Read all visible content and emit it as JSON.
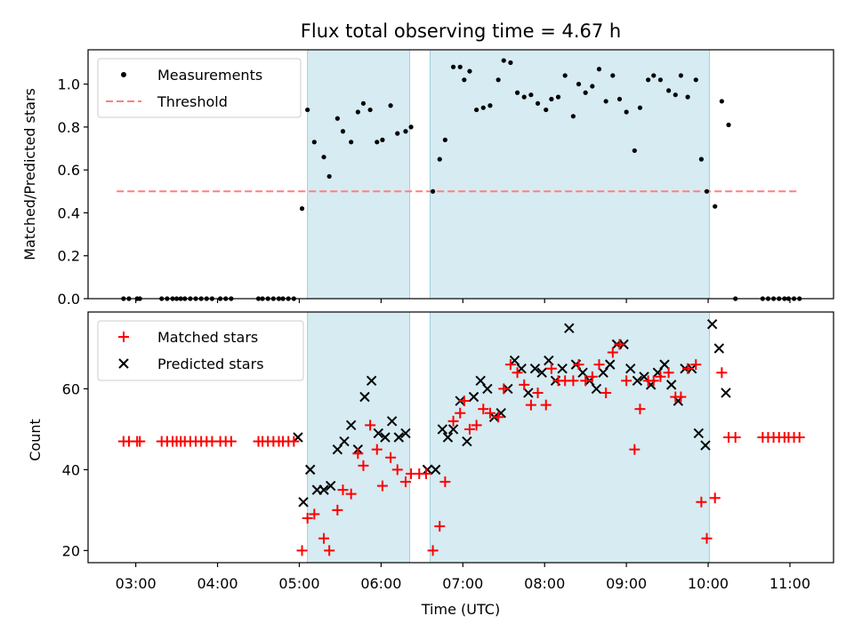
{
  "title": "Flux total observing time = 4.67 h",
  "chart_data": [
    {
      "type": "scatter",
      "ylabel": "Matched/Predicted stars",
      "ylim": [
        0,
        1.16
      ],
      "xlim": [
        "02:25",
        "11:32"
      ],
      "yticks": [
        "0.0",
        "0.2",
        "0.4",
        "0.6",
        "0.8",
        "1.0"
      ],
      "yticks_values": [
        0,
        0.2,
        0.4,
        0.6,
        0.8,
        1.0
      ],
      "legend": {
        "placement": "top-left",
        "entries": [
          "Measurements",
          "Threshold"
        ]
      },
      "shaded_intervals": [
        [
          "05:06",
          "06:21"
        ],
        [
          "06:36",
          "10:01"
        ]
      ],
      "threshold": {
        "value": 0.5,
        "x_range": [
          "02:46",
          "11:05"
        ]
      },
      "series": [
        {
          "name": "Measurements",
          "points": [
            [
              "02:51",
              0
            ],
            [
              "02:55",
              0
            ],
            [
              "03:01",
              0
            ],
            [
              "03:03",
              0
            ],
            [
              "03:19",
              0
            ],
            [
              "03:23",
              0
            ],
            [
              "03:27",
              0
            ],
            [
              "03:30",
              0
            ],
            [
              "03:33",
              0
            ],
            [
              "03:36",
              0
            ],
            [
              "03:40",
              0
            ],
            [
              "03:44",
              0
            ],
            [
              "03:48",
              0
            ],
            [
              "03:52",
              0
            ],
            [
              "03:56",
              0
            ],
            [
              "04:02",
              0
            ],
            [
              "04:06",
              0
            ],
            [
              "04:10",
              0
            ],
            [
              "04:30",
              0
            ],
            [
              "04:33",
              0
            ],
            [
              "04:37",
              0
            ],
            [
              "04:41",
              0
            ],
            [
              "04:45",
              0
            ],
            [
              "04:48",
              0
            ],
            [
              "04:52",
              0
            ],
            [
              "04:56",
              0
            ],
            [
              "05:02",
              0.42
            ],
            [
              "05:06",
              0.88
            ],
            [
              "05:11",
              0.73
            ],
            [
              "05:18",
              0.66
            ],
            [
              "05:22",
              0.57
            ],
            [
              "05:28",
              0.84
            ],
            [
              "05:32",
              0.78
            ],
            [
              "05:38",
              0.73
            ],
            [
              "05:43",
              0.87
            ],
            [
              "05:47",
              0.91
            ],
            [
              "05:52",
              0.88
            ],
            [
              "05:57",
              0.73
            ],
            [
              "06:01",
              0.74
            ],
            [
              "06:07",
              0.9
            ],
            [
              "06:12",
              0.77
            ],
            [
              "06:18",
              0.78
            ],
            [
              "06:22",
              0.8
            ],
            [
              "06:38",
              0.5
            ],
            [
              "06:43",
              0.65
            ],
            [
              "06:47",
              0.74
            ],
            [
              "06:53",
              1.08
            ],
            [
              "06:58",
              1.08
            ],
            [
              "07:01",
              1.02
            ],
            [
              "07:05",
              1.06
            ],
            [
              "07:10",
              0.88
            ],
            [
              "07:15",
              0.89
            ],
            [
              "07:20",
              0.9
            ],
            [
              "07:26",
              1.02
            ],
            [
              "07:30",
              1.11
            ],
            [
              "07:35",
              1.1
            ],
            [
              "07:40",
              0.96
            ],
            [
              "07:45",
              0.94
            ],
            [
              "07:50",
              0.95
            ],
            [
              "07:55",
              0.91
            ],
            [
              "08:01",
              0.88
            ],
            [
              "08:05",
              0.93
            ],
            [
              "08:10",
              0.94
            ],
            [
              "08:15",
              1.04
            ],
            [
              "08:21",
              0.85
            ],
            [
              "08:25",
              1.0
            ],
            [
              "08:30",
              0.96
            ],
            [
              "08:35",
              0.99
            ],
            [
              "08:40",
              1.07
            ],
            [
              "08:45",
              0.92
            ],
            [
              "08:50",
              1.04
            ],
            [
              "08:55",
              0.93
            ],
            [
              "09:00",
              0.87
            ],
            [
              "09:06",
              0.69
            ],
            [
              "09:10",
              0.89
            ],
            [
              "09:16",
              1.02
            ],
            [
              "09:20",
              1.04
            ],
            [
              "09:25",
              1.02
            ],
            [
              "09:31",
              0.97
            ],
            [
              "09:36",
              0.95
            ],
            [
              "09:40",
              1.04
            ],
            [
              "09:45",
              0.94
            ],
            [
              "09:51",
              1.02
            ],
            [
              "09:55",
              0.65
            ],
            [
              "09:59",
              0.5
            ],
            [
              "10:05",
              0.43
            ],
            [
              "10:10",
              0.92
            ],
            [
              "10:15",
              0.81
            ],
            [
              "10:20",
              0
            ],
            [
              "10:40",
              0
            ],
            [
              "10:44",
              0
            ],
            [
              "10:48",
              0
            ],
            [
              "10:52",
              0
            ],
            [
              "10:56",
              0
            ],
            [
              "10:59",
              0
            ],
            [
              "11:03",
              0
            ],
            [
              "11:07",
              0
            ]
          ]
        },
        {
          "name": "Threshold",
          "y": 0.5
        }
      ]
    },
    {
      "type": "scatter",
      "xlabel": "Time (UTC)",
      "ylabel": "Count",
      "ylim": [
        17,
        79
      ],
      "xlim": [
        "02:25",
        "11:32"
      ],
      "xticks": [
        "03:00",
        "04:00",
        "05:00",
        "06:00",
        "07:00",
        "08:00",
        "09:00",
        "10:00",
        "11:00"
      ],
      "yticks": [
        "20",
        "40",
        "60"
      ],
      "yticks_values": [
        20,
        40,
        60
      ],
      "legend": {
        "placement": "top-left",
        "entries": [
          "Matched stars",
          "Predicted stars"
        ]
      },
      "shaded_intervals": [
        [
          "05:06",
          "06:21"
        ],
        [
          "06:36",
          "10:01"
        ]
      ],
      "series": [
        {
          "name": "Matched stars",
          "points": [
            [
              "02:51",
              47
            ],
            [
              "02:55",
              47
            ],
            [
              "03:01",
              47
            ],
            [
              "03:03",
              47
            ],
            [
              "03:19",
              47
            ],
            [
              "03:23",
              47
            ],
            [
              "03:27",
              47
            ],
            [
              "03:30",
              47
            ],
            [
              "03:33",
              47
            ],
            [
              "03:36",
              47
            ],
            [
              "03:40",
              47
            ],
            [
              "03:44",
              47
            ],
            [
              "03:48",
              47
            ],
            [
              "03:52",
              47
            ],
            [
              "03:56",
              47
            ],
            [
              "04:02",
              47
            ],
            [
              "04:06",
              47
            ],
            [
              "04:10",
              47
            ],
            [
              "04:30",
              47
            ],
            [
              "04:33",
              47
            ],
            [
              "04:37",
              47
            ],
            [
              "04:41",
              47
            ],
            [
              "04:45",
              47
            ],
            [
              "04:48",
              47
            ],
            [
              "04:52",
              47
            ],
            [
              "04:56",
              47
            ],
            [
              "05:02",
              20
            ],
            [
              "05:06",
              28
            ],
            [
              "05:11",
              29
            ],
            [
              "05:18",
              23
            ],
            [
              "05:22",
              20
            ],
            [
              "05:28",
              30
            ],
            [
              "05:32",
              35
            ],
            [
              "05:38",
              34
            ],
            [
              "05:43",
              44
            ],
            [
              "05:47",
              41
            ],
            [
              "05:52",
              51
            ],
            [
              "05:57",
              45
            ],
            [
              "06:01",
              36
            ],
            [
              "06:07",
              43
            ],
            [
              "06:12",
              40
            ],
            [
              "06:18",
              37
            ],
            [
              "06:22",
              39
            ],
            [
              "06:28",
              39
            ],
            [
              "06:33",
              39
            ],
            [
              "06:38",
              20
            ],
            [
              "06:43",
              26
            ],
            [
              "06:47",
              37
            ],
            [
              "06:53",
              52
            ],
            [
              "06:58",
              54
            ],
            [
              "07:01",
              57
            ],
            [
              "07:05",
              50
            ],
            [
              "07:10",
              51
            ],
            [
              "07:15",
              55
            ],
            [
              "07:20",
              54
            ],
            [
              "07:26",
              53
            ],
            [
              "07:30",
              60
            ],
            [
              "07:35",
              66
            ],
            [
              "07:40",
              64
            ],
            [
              "07:45",
              61
            ],
            [
              "07:50",
              56
            ],
            [
              "07:55",
              59
            ],
            [
              "08:01",
              56
            ],
            [
              "08:05",
              65
            ],
            [
              "08:10",
              62
            ],
            [
              "08:15",
              62
            ],
            [
              "08:21",
              62
            ],
            [
              "08:25",
              66
            ],
            [
              "08:30",
              62
            ],
            [
              "08:35",
              63
            ],
            [
              "08:40",
              66
            ],
            [
              "08:45",
              59
            ],
            [
              "08:50",
              69
            ],
            [
              "08:55",
              71
            ],
            [
              "09:00",
              62
            ],
            [
              "09:06",
              45
            ],
            [
              "09:10",
              55
            ],
            [
              "09:16",
              62
            ],
            [
              "09:20",
              62
            ],
            [
              "09:25",
              63
            ],
            [
              "09:31",
              64
            ],
            [
              "09:36",
              58
            ],
            [
              "09:40",
              58
            ],
            [
              "09:45",
              65
            ],
            [
              "09:51",
              66
            ],
            [
              "09:55",
              32
            ],
            [
              "09:59",
              23
            ],
            [
              "10:05",
              33
            ],
            [
              "10:10",
              64
            ],
            [
              "10:15",
              48
            ],
            [
              "10:20",
              48
            ],
            [
              "10:40",
              48
            ],
            [
              "10:44",
              48
            ],
            [
              "10:48",
              48
            ],
            [
              "10:52",
              48
            ],
            [
              "10:56",
              48
            ],
            [
              "10:59",
              48
            ],
            [
              "11:03",
              48
            ],
            [
              "11:07",
              48
            ]
          ]
        },
        {
          "name": "Predicted stars",
          "points": [
            [
              "04:59",
              48
            ],
            [
              "05:03",
              32
            ],
            [
              "05:08",
              40
            ],
            [
              "05:13",
              35
            ],
            [
              "05:18",
              35
            ],
            [
              "05:23",
              36
            ],
            [
              "05:28",
              45
            ],
            [
              "05:33",
              47
            ],
            [
              "05:38",
              51
            ],
            [
              "05:43",
              45
            ],
            [
              "05:48",
              58
            ],
            [
              "05:53",
              62
            ],
            [
              "05:58",
              49
            ],
            [
              "06:03",
              48
            ],
            [
              "06:08",
              52
            ],
            [
              "06:13",
              48
            ],
            [
              "06:18",
              49
            ],
            [
              "06:34",
              40
            ],
            [
              "06:40",
              40
            ],
            [
              "06:45",
              50
            ],
            [
              "06:49",
              48
            ],
            [
              "06:53",
              50
            ],
            [
              "06:58",
              57
            ],
            [
              "07:03",
              47
            ],
            [
              "07:08",
              58
            ],
            [
              "07:13",
              62
            ],
            [
              "07:18",
              60
            ],
            [
              "07:23",
              53
            ],
            [
              "07:28",
              54
            ],
            [
              "07:33",
              60
            ],
            [
              "07:38",
              67
            ],
            [
              "07:43",
              65
            ],
            [
              "07:48",
              59
            ],
            [
              "07:53",
              65
            ],
            [
              "07:58",
              64
            ],
            [
              "08:03",
              67
            ],
            [
              "08:08",
              62
            ],
            [
              "08:13",
              65
            ],
            [
              "08:18",
              75
            ],
            [
              "08:23",
              66
            ],
            [
              "08:28",
              64
            ],
            [
              "08:33",
              62
            ],
            [
              "08:38",
              60
            ],
            [
              "08:43",
              64
            ],
            [
              "08:48",
              66
            ],
            [
              "08:53",
              71
            ],
            [
              "08:58",
              71
            ],
            [
              "09:03",
              65
            ],
            [
              "09:08",
              62
            ],
            [
              "09:13",
              63
            ],
            [
              "09:18",
              61
            ],
            [
              "09:23",
              64
            ],
            [
              "09:28",
              66
            ],
            [
              "09:33",
              61
            ],
            [
              "09:38",
              57
            ],
            [
              "09:43",
              65
            ],
            [
              "09:48",
              65
            ],
            [
              "09:53",
              49
            ],
            [
              "09:58",
              46
            ],
            [
              "10:03",
              76
            ],
            [
              "10:08",
              70
            ],
            [
              "10:13",
              59
            ]
          ]
        }
      ]
    }
  ]
}
